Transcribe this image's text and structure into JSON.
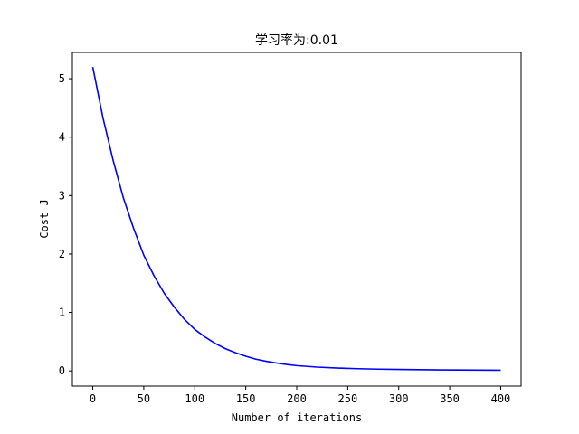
{
  "chart_data": {
    "type": "line",
    "title": "学习率为:0.01",
    "xlabel": "Number of iterations",
    "ylabel": "Cost J",
    "xlim": [
      -20,
      420
    ],
    "ylim": [
      -0.26,
      5.45
    ],
    "xticks": [
      0,
      50,
      100,
      150,
      200,
      250,
      300,
      350,
      400
    ],
    "yticks": [
      0,
      1,
      2,
      3,
      4,
      5
    ],
    "grid": false,
    "series": [
      {
        "color": "#0000ff",
        "x": [
          0,
          10,
          20,
          30,
          40,
          50,
          60,
          70,
          80,
          90,
          100,
          110,
          120,
          130,
          140,
          150,
          160,
          170,
          180,
          190,
          200,
          220,
          240,
          260,
          280,
          300,
          320,
          340,
          360,
          380,
          400
        ],
        "y": [
          5.2,
          4.33,
          3.6,
          2.96,
          2.44,
          1.98,
          1.63,
          1.33,
          1.09,
          0.88,
          0.71,
          0.58,
          0.47,
          0.38,
          0.31,
          0.25,
          0.2,
          0.165,
          0.135,
          0.11,
          0.09,
          0.065,
          0.048,
          0.038,
          0.03,
          0.025,
          0.021,
          0.018,
          0.016,
          0.014,
          0.012
        ]
      }
    ]
  }
}
